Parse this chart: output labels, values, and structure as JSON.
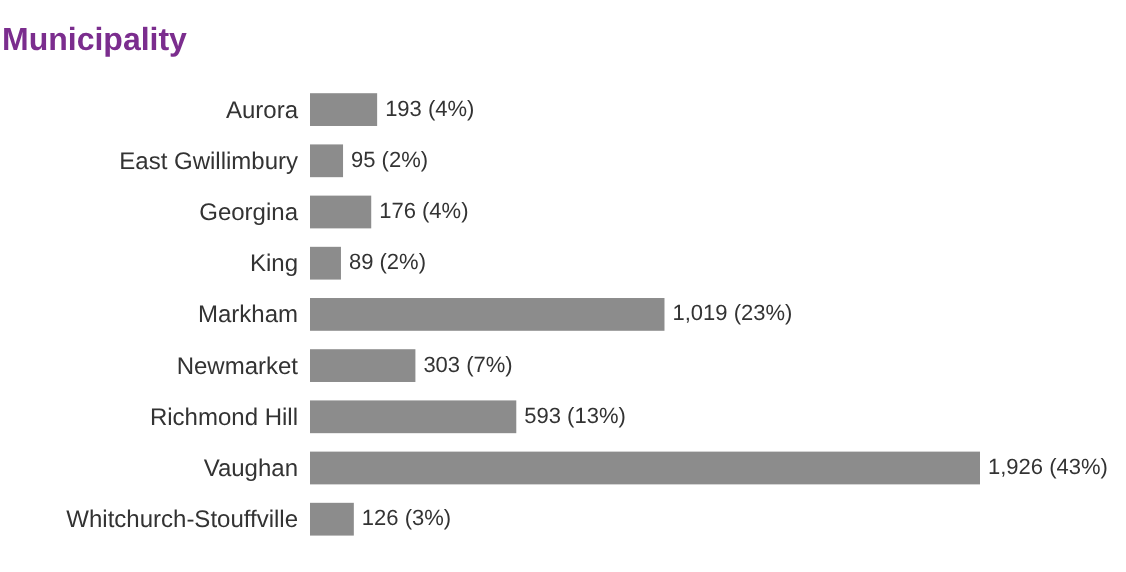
{
  "chart_data": {
    "type": "bar",
    "orientation": "horizontal",
    "title": "Municipality",
    "categories": [
      "Aurora",
      "East Gwillimbury",
      "Georgina",
      "King",
      "Markham",
      "Newmarket",
      "Richmond Hill",
      "Vaughan",
      "Whitchurch-Stouffville"
    ],
    "values": [
      193,
      95,
      176,
      89,
      1019,
      303,
      593,
      1926,
      126
    ],
    "value_labels": [
      "193 (4%)",
      "95 (2%)",
      "176 (4%)",
      "89 (2%)",
      "1,019 (23%)",
      "303 (7%)",
      "593 (13%)",
      "1,926 (43%)",
      "126 (3%)"
    ],
    "color": "#8c8c8c"
  }
}
